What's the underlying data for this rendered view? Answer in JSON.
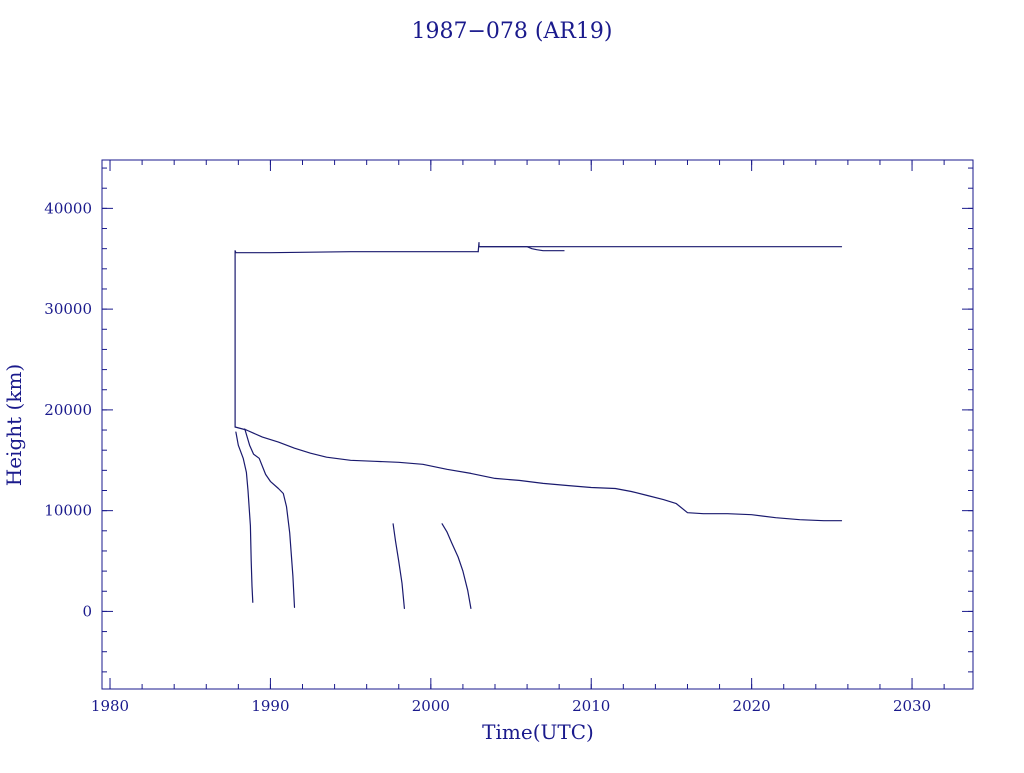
{
  "chart_data": {
    "type": "line",
    "title": "1987−078 (AR19)",
    "xlabel": "Time(UTC)",
    "ylabel": "Height (km)",
    "xlim": [
      1979.5,
      2033.8
    ],
    "ylim": [
      -7700,
      44800
    ],
    "x_ticks": [
      1980,
      1990,
      2000,
      2010,
      2020,
      2030
    ],
    "y_ticks": [
      0,
      10000,
      20000,
      30000,
      40000
    ],
    "x_tick_labels": [
      "1980",
      "1990",
      "2000",
      "2010",
      "2020",
      "2030"
    ],
    "y_tick_labels": [
      "0",
      "10000",
      "20000",
      "30000",
      "40000"
    ],
    "x_minor_step": 2,
    "y_minor_step": 2000,
    "grid": false,
    "line_color": "#1a1a6e",
    "text_color": "#1a1a8c",
    "series": [
      {
        "x": [
          1987.8,
          1987.8,
          1987.8,
          1987.85,
          1988.0,
          1990.0,
          1995.0,
          2000.0,
          2002.95
        ],
        "y": [
          18300,
          34800,
          35800,
          35600,
          35600,
          35600,
          35700,
          35700,
          35700
        ]
      },
      {
        "x": [
          2002.95,
          2003.0,
          2003.0,
          2003.05,
          2006.0,
          2006.3,
          2006.6,
          2007.0,
          2008.3
        ],
        "y": [
          35700,
          36600,
          36200,
          36200,
          36200,
          36000,
          35900,
          35800,
          35800
        ]
      },
      {
        "x": [
          2003.05,
          2005.0,
          2008.3,
          2010.0,
          2015.0,
          2020.0,
          2025.6
        ],
        "y": [
          36200,
          36200,
          36200,
          36200,
          36200,
          36200,
          36200
        ]
      },
      {
        "x": [
          1987.8,
          1988.5,
          1989.5,
          1990.5,
          1991.5,
          1992.5,
          1993.5,
          1995.0,
          1996.5,
          1998.0,
          1999.5,
          2001.0,
          2002.5,
          2004.0,
          2005.5,
          2007.0,
          2008.5,
          2010.0,
          2011.5,
          2012.5,
          2013.5,
          2014.5,
          2015.3,
          2016.0,
          2017.0,
          2018.5,
          2020.0,
          2021.5,
          2023.0,
          2024.5,
          2025.6
        ],
        "y": [
          18300,
          18000,
          17300,
          16800,
          16200,
          15700,
          15300,
          15000,
          14900,
          14800,
          14600,
          14100,
          13700,
          13200,
          13000,
          12700,
          12500,
          12300,
          12200,
          11900,
          11500,
          11100,
          10700,
          9800,
          9700,
          9700,
          9600,
          9300,
          9100,
          9000,
          9000
        ]
      },
      {
        "x": [
          1987.85,
          1988.0,
          1988.3,
          1988.5,
          1988.6,
          1988.75,
          1988.8,
          1988.85,
          1988.9
        ],
        "y": [
          17800,
          16500,
          15200,
          13800,
          12000,
          8500,
          5000,
          2500,
          900
        ]
      },
      {
        "x": [
          1988.4,
          1988.7,
          1988.95,
          1989.3,
          1989.7,
          1990.0,
          1990.5,
          1990.8,
          1991.0,
          1991.2,
          1991.4,
          1991.5
        ],
        "y": [
          18100,
          16500,
          15600,
          15200,
          13600,
          12900,
          12200,
          11700,
          10400,
          7800,
          3500,
          400
        ]
      },
      {
        "x": [
          1997.65,
          1997.8,
          1998.0,
          1998.2,
          1998.35
        ],
        "y": [
          8700,
          7000,
          5000,
          2800,
          300
        ]
      },
      {
        "x": [
          2000.7,
          2001.0,
          2001.3,
          2001.7,
          2002.0,
          2002.3,
          2002.5
        ],
        "y": [
          8700,
          7900,
          6800,
          5400,
          4000,
          2100,
          300
        ]
      }
    ]
  }
}
